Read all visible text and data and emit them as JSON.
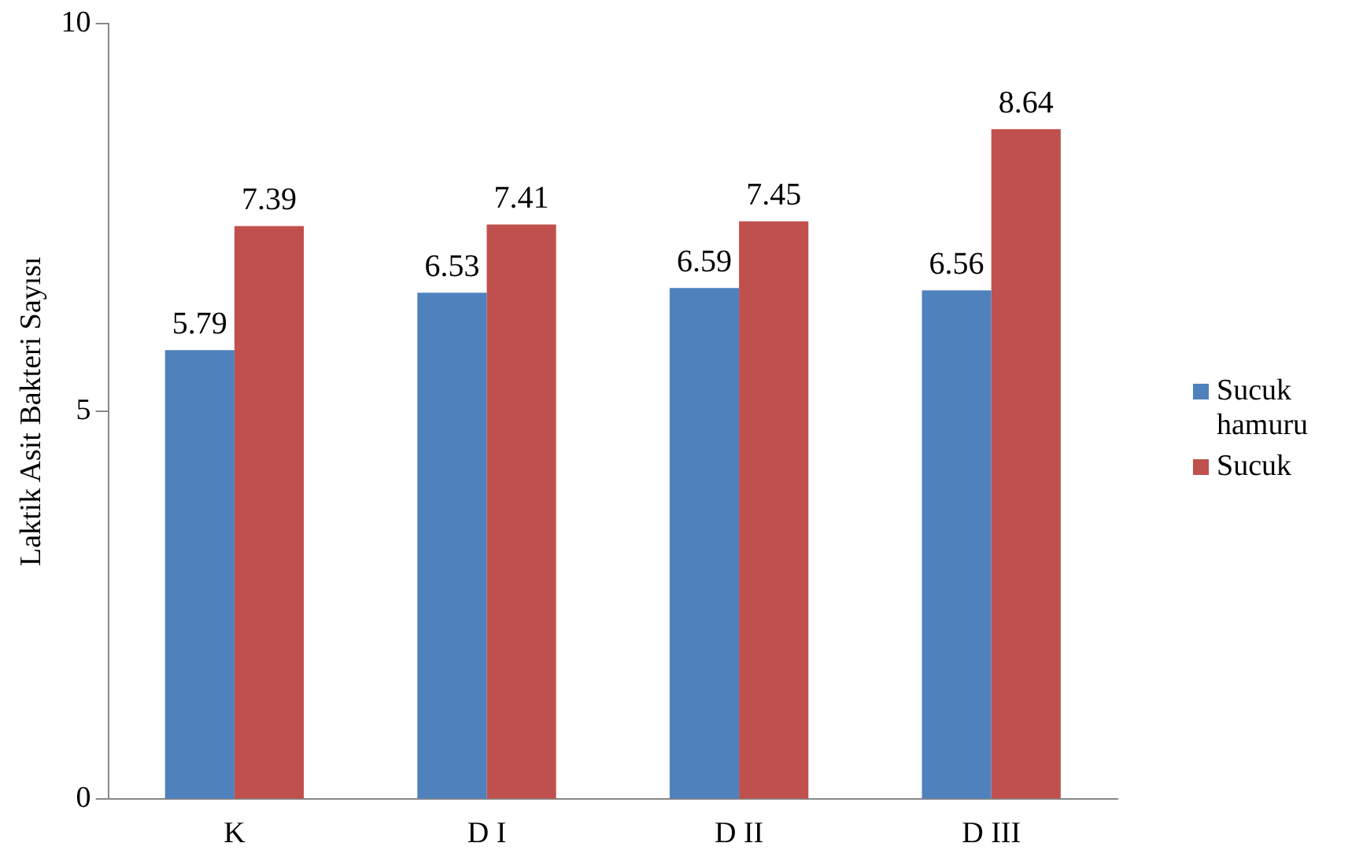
{
  "chart_data": {
    "type": "bar",
    "ylabel": "Laktik Asit Bakteri Sayısı",
    "categories": [
      "K",
      "D I",
      "D II",
      "D III"
    ],
    "series": [
      {
        "name": "Sucuk hamuru",
        "color": "#4f81bd",
        "values": [
          5.79,
          6.53,
          6.59,
          6.56
        ]
      },
      {
        "name": "Sucuk",
        "color": "#c0504d",
        "values": [
          7.39,
          7.41,
          7.45,
          8.64
        ]
      }
    ],
    "ylim": [
      0,
      10
    ],
    "yticks": [
      0,
      5,
      10
    ],
    "grid": false,
    "legend": "right",
    "data_labels": true
  }
}
